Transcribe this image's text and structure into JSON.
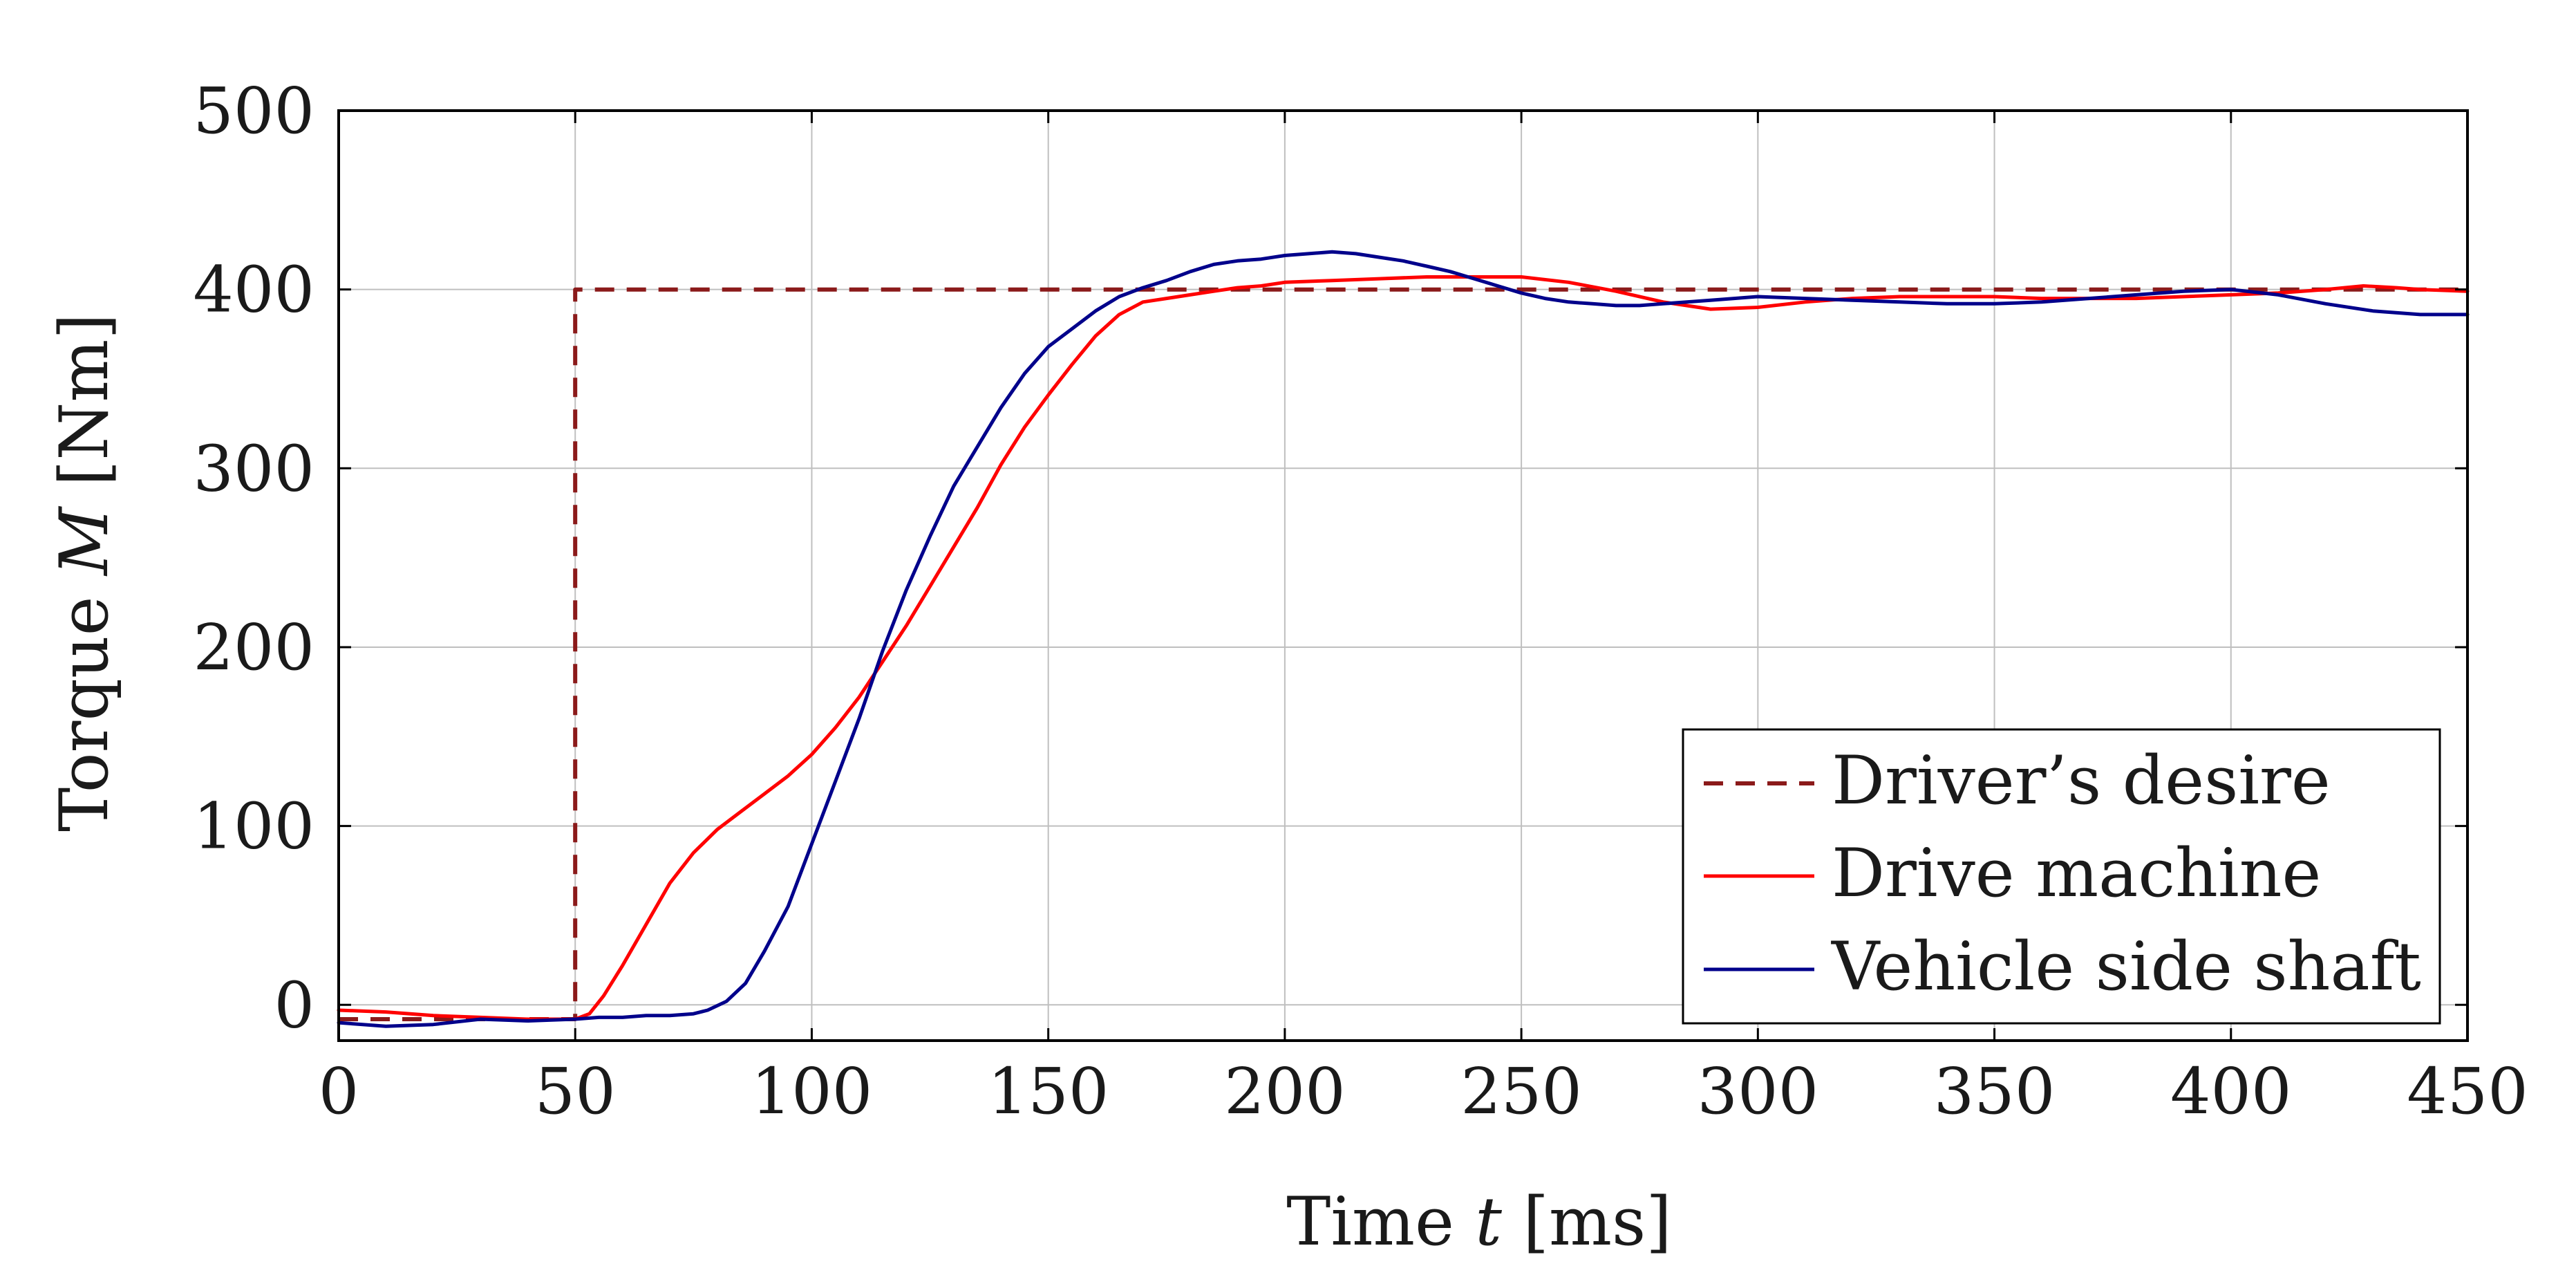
{
  "chart_data": {
    "type": "line",
    "title": "",
    "xlabel_parts": {
      "prefix": "Time ",
      "var": "t",
      "unit": " [ms]"
    },
    "ylabel_parts": {
      "prefix": "Torque ",
      "var": "M",
      "unit": " [Nm]"
    },
    "xlim": [
      0,
      450
    ],
    "ylim": [
      -20,
      500
    ],
    "xticks": [
      0,
      50,
      100,
      150,
      200,
      250,
      300,
      350,
      400,
      450
    ],
    "yticks": [
      0,
      100,
      200,
      300,
      400,
      500
    ],
    "grid": true,
    "legend_position": "bottom-right",
    "series": [
      {
        "name": "Driver’s desire",
        "color": "#8b1a1a",
        "dash": "dashed",
        "x": [
          0,
          50,
          50,
          450
        ],
        "y": [
          -8,
          -8,
          400,
          400
        ]
      },
      {
        "name": "Drive machine",
        "color": "#ff0000",
        "dash": "solid",
        "x": [
          0,
          10,
          20,
          30,
          40,
          50,
          53,
          56,
          60,
          65,
          70,
          75,
          80,
          85,
          90,
          95,
          100,
          105,
          110,
          115,
          120,
          125,
          130,
          135,
          140,
          145,
          150,
          155,
          160,
          165,
          170,
          175,
          180,
          185,
          190,
          195,
          200,
          210,
          220,
          230,
          240,
          250,
          260,
          270,
          280,
          290,
          300,
          310,
          320,
          330,
          340,
          350,
          360,
          370,
          380,
          390,
          400,
          410,
          420,
          428,
          435,
          440,
          450
        ],
        "y": [
          -3,
          -4,
          -6,
          -7,
          -8,
          -8,
          -5,
          5,
          22,
          45,
          68,
          85,
          98,
          108,
          118,
          128,
          140,
          155,
          172,
          192,
          212,
          234,
          256,
          278,
          302,
          323,
          341,
          358,
          374,
          386,
          393,
          395,
          397,
          399,
          401,
          402,
          404,
          405,
          406,
          407,
          407,
          407,
          404,
          399,
          393,
          389,
          390,
          393,
          395,
          396,
          396,
          396,
          395,
          395,
          395,
          396,
          397,
          398,
          400,
          402,
          401,
          400,
          399
        ]
      },
      {
        "name": "Vehicle side shaft",
        "color": "#00008b",
        "dash": "solid",
        "x": [
          0,
          10,
          20,
          30,
          40,
          50,
          55,
          60,
          65,
          70,
          75,
          78,
          82,
          86,
          90,
          95,
          100,
          105,
          110,
          115,
          120,
          125,
          130,
          135,
          140,
          145,
          150,
          155,
          160,
          165,
          170,
          175,
          180,
          185,
          190,
          195,
          200,
          205,
          210,
          215,
          220,
          225,
          230,
          235,
          240,
          245,
          250,
          255,
          260,
          265,
          270,
          275,
          280,
          285,
          290,
          295,
          300,
          310,
          320,
          330,
          340,
          350,
          360,
          370,
          380,
          390,
          400,
          410,
          420,
          430,
          440,
          450
        ],
        "y": [
          -10,
          -12,
          -11,
          -8,
          -9,
          -8,
          -7,
          -7,
          -6,
          -6,
          -5,
          -3,
          2,
          12,
          30,
          55,
          90,
          125,
          160,
          198,
          232,
          262,
          290,
          312,
          334,
          353,
          368,
          378,
          388,
          396,
          401,
          405,
          410,
          414,
          416,
          417,
          419,
          420,
          421,
          420,
          418,
          416,
          413,
          410,
          406,
          402,
          398,
          395,
          393,
          392,
          391,
          391,
          392,
          393,
          394,
          395,
          396,
          395,
          394,
          393,
          392,
          392,
          393,
          395,
          397,
          399,
          400,
          397,
          392,
          388,
          386,
          386
        ]
      }
    ]
  }
}
